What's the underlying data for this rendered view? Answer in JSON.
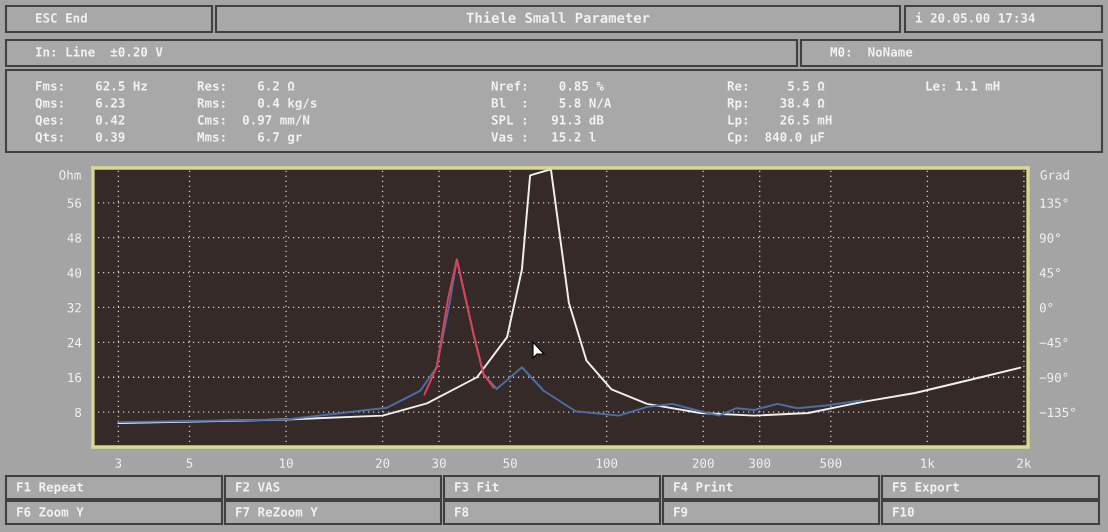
{
  "chart_data": {
    "type": "line",
    "title": "Thiele Small Parameter",
    "ylabel": "Ohm",
    "y2label": "Grad",
    "series": [
      {
        "color": "#f0f0f0",
        "x": [
          3,
          10,
          20,
          27.5,
          39.4,
          48.9,
          54.4,
          57.7,
          59.5,
          65,
          67,
          76.2,
          86.5,
          103.5,
          133.6,
          196,
          288,
          425,
          623,
          915,
          1343,
          1950
        ],
        "values": [
          5.5,
          6.3,
          7.2,
          10.0,
          16.0,
          25.2,
          40.7,
          62.3,
          null,
          null,
          63.7,
          33.1,
          19.8,
          13.2,
          9.9,
          7.8,
          7.2,
          7.8,
          10.3,
          12.4,
          15.3,
          18.2
        ]
      },
      {
        "color": "#4a6fa8",
        "x": [
          3,
          10,
          20.6,
          26.2,
          29.5,
          32.5,
          34.1,
          38.4,
          41.3,
          45.4,
          54.4,
          63.6,
          80,
          109,
          134,
          160,
          196,
          224,
          254,
          288,
          341,
          393,
          482,
          623
        ],
        "values": [
          5.7,
          6.3,
          9.0,
          12.9,
          18.3,
          33.7,
          43.0,
          26.0,
          16.7,
          13.3,
          18.3,
          12.9,
          8.2,
          7.2,
          9.2,
          9.9,
          8.2,
          7.2,
          8.9,
          8.5,
          9.9,
          8.9,
          9.5,
          10.7
        ]
      },
      {
        "color": "#e04050",
        "x": [
          27,
          29.5,
          32,
          34.1,
          38.4,
          41.3,
          44.4
        ],
        "values": [
          12.0,
          18.3,
          34.0,
          43.0,
          26.0,
          16.7,
          13.6
        ]
      }
    ],
    "log": "x",
    "xlim": [
      2.5,
      2060
    ],
    "xticks": [
      3,
      5,
      10,
      20,
      30,
      50,
      100,
      200,
      300,
      500,
      {
        "value": 1000,
        "label": "1k"
      },
      {
        "value": 2000,
        "label": "2k"
      }
    ],
    "ylim": [
      0,
      64
    ],
    "yticks": [
      8,
      16,
      24,
      32,
      40,
      48,
      56
    ],
    "y2lim": [
      -180,
      180
    ],
    "y2ticks": [
      {
        "value": -135,
        "label": "−135°"
      },
      {
        "value": -90,
        "label": "−90°"
      },
      {
        "value": -45,
        "label": "−45°"
      },
      {
        "value": 0,
        "label": "0°"
      },
      {
        "value": 45,
        "label": "45°"
      },
      {
        "value": 90,
        "label": "90°"
      },
      {
        "value": 135,
        "label": "135°"
      }
    ],
    "grid": true,
    "legend": false,
    "annotations": [
      "ESC End",
      "i 20.05.00 17:34",
      "In: Line  ±0.20 V",
      "M0:  NoName",
      "Fms:    62.5 Hz",
      "Res:    6.2 Ω",
      "Nref:    0.85 %",
      "Re:     5.5 Ω",
      "Le: 1.1 mH",
      "Qms:    6.23",
      "Rms:    0.4 kg/s",
      "Bl  :    5.8 N/A",
      "Rp:    38.4 Ω",
      "Qes:    0.42",
      "Cms:  0.97 mm/N",
      "SPL :   91.3 dB",
      "Lp:    26.5 mH",
      "Qts:    0.39",
      "Mms:    6.7 gr",
      "Vas :   15.2 l",
      "Cp:  840.0 µF",
      "F1 Repeat",
      "F2 VAS",
      "F3 Fit",
      "F4 Print",
      "F5 Export",
      "F6 Zoom Y",
      "F7 ReZoom Y",
      "F8",
      "F9",
      "F10"
    ]
  }
}
